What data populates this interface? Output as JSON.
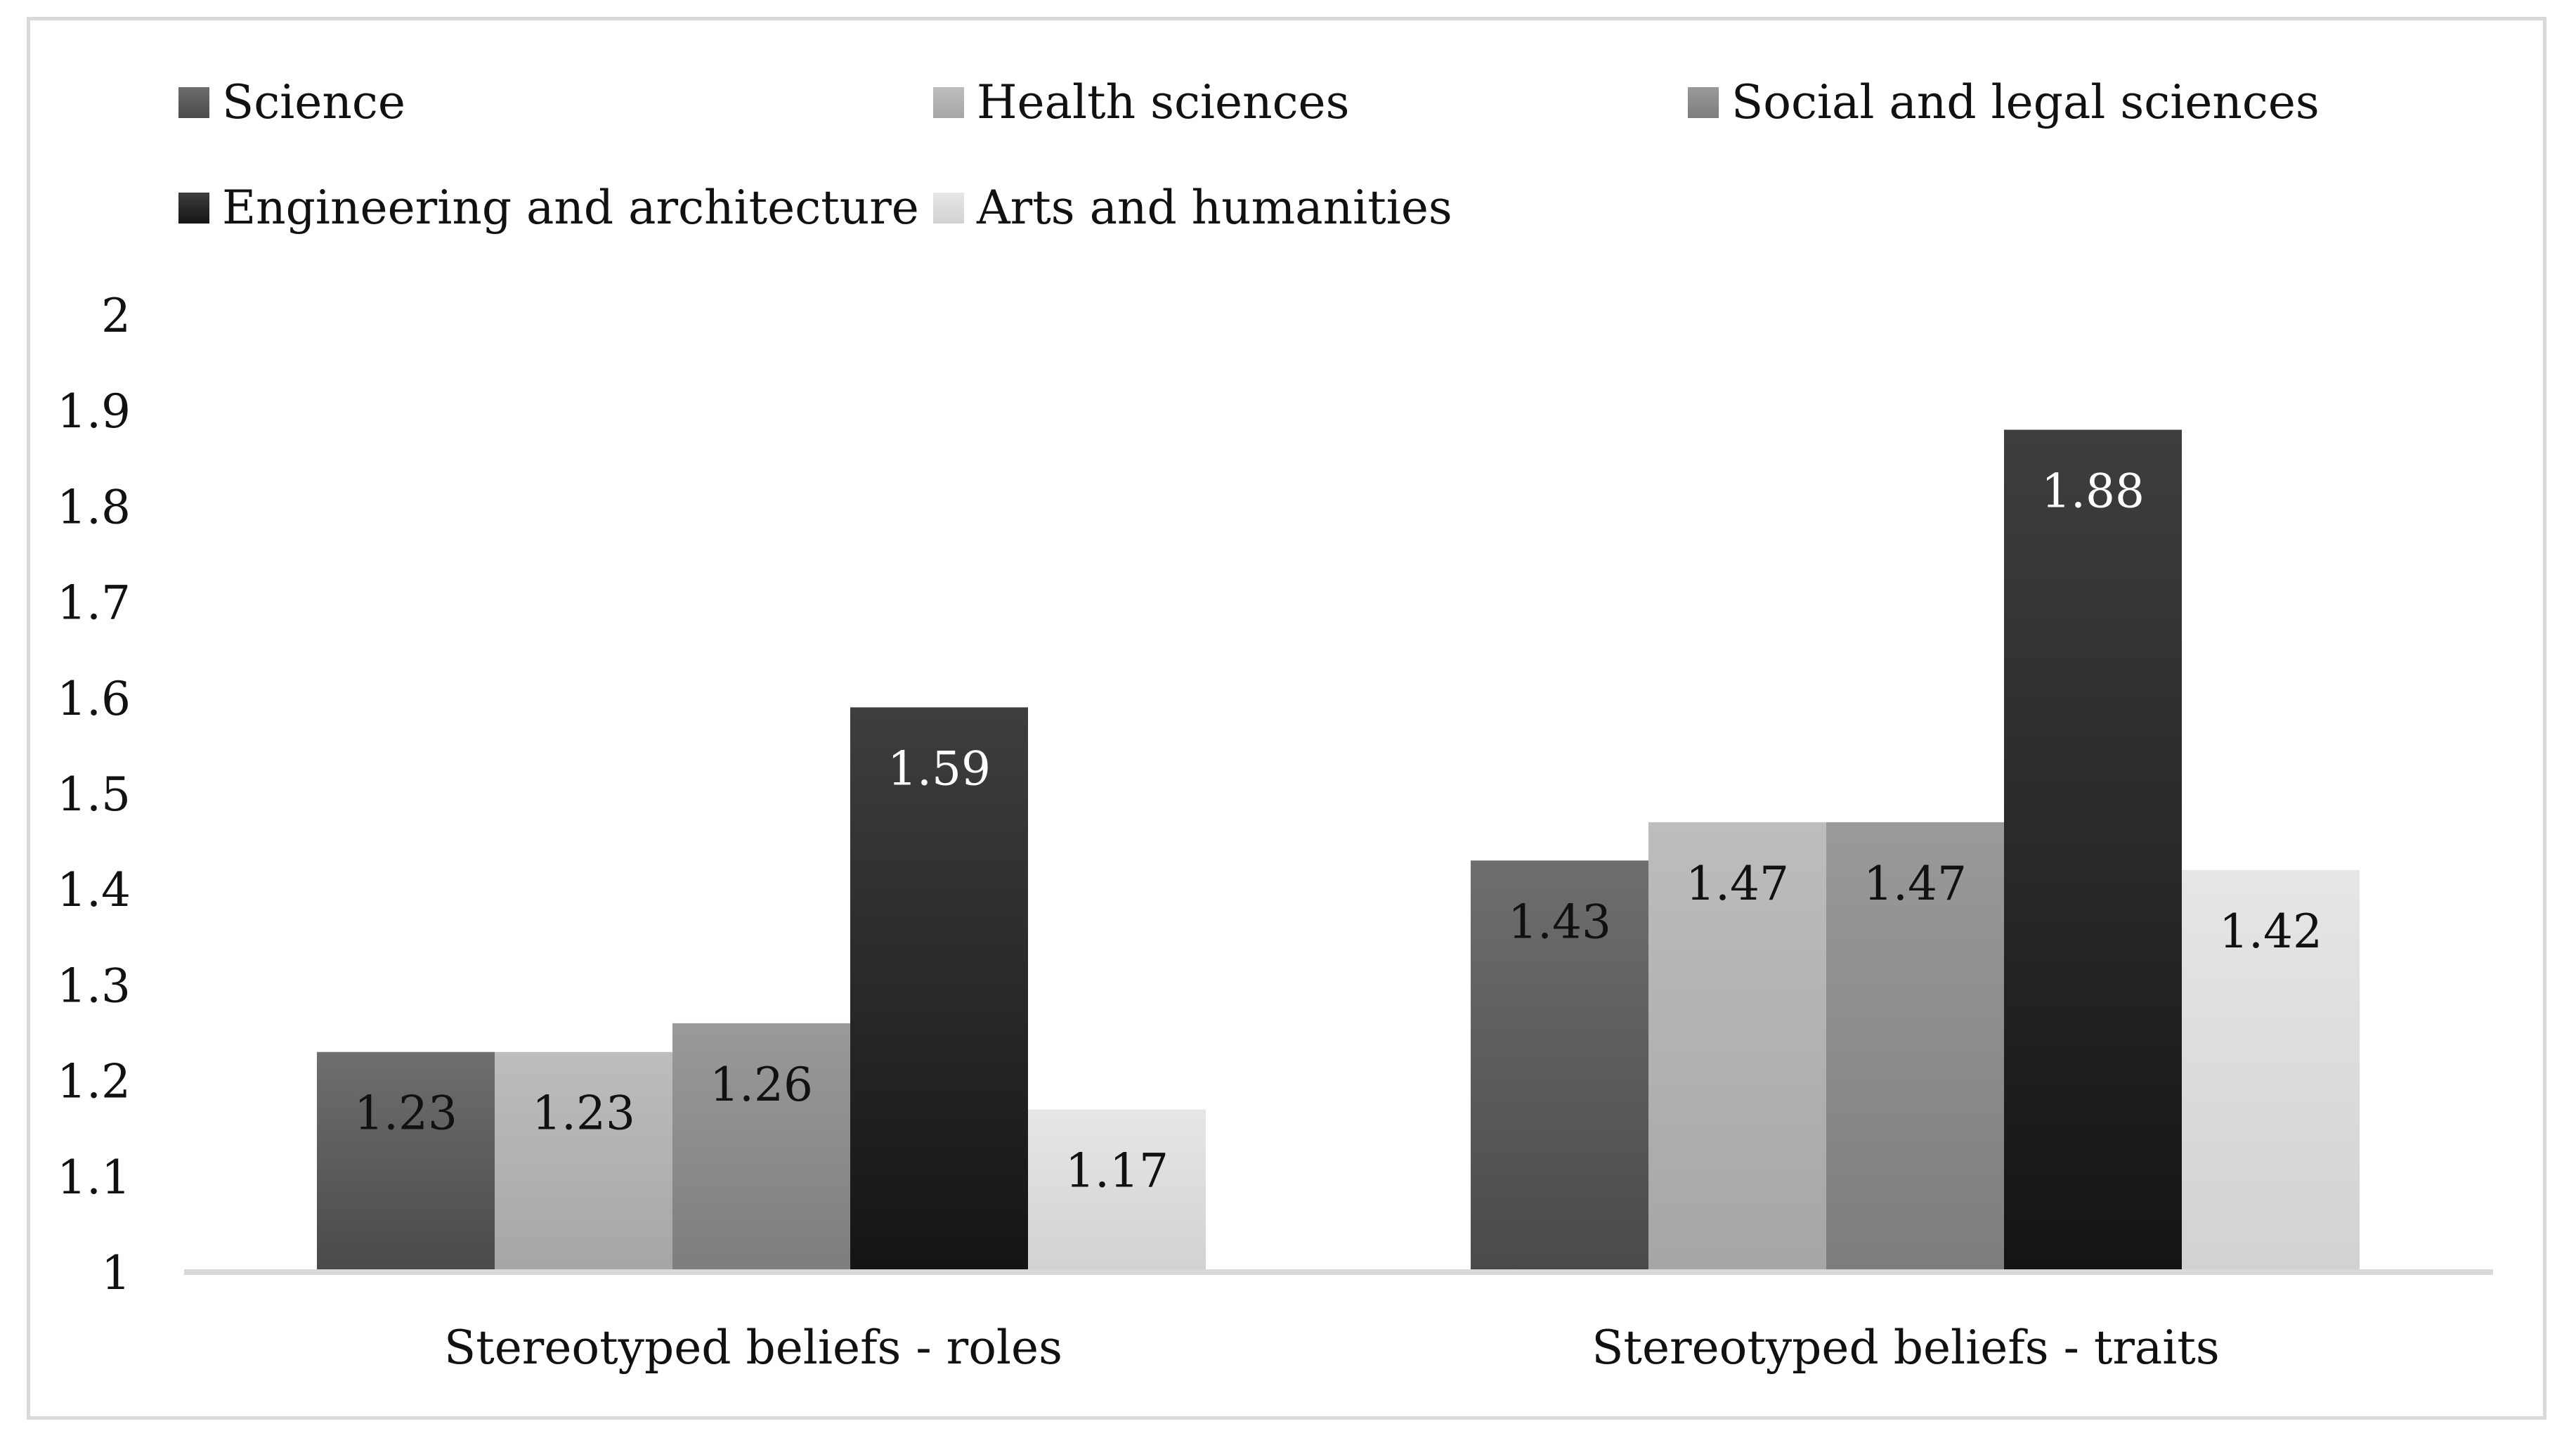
{
  "chart_data": {
    "type": "bar",
    "title": "",
    "xlabel": "",
    "ylabel": "",
    "ylim": [
      1,
      2
    ],
    "yticks": [
      "1",
      "1.1",
      "1.2",
      "1.3",
      "1.4",
      "1.5",
      "1.6",
      "1.7",
      "1.8",
      "1.9",
      "2"
    ],
    "grid": false,
    "legend_position": "top",
    "categories": [
      "Stereotyped beliefs - roles",
      "Stereotyped beliefs - traits"
    ],
    "series": [
      {
        "name": "Science",
        "values": [
          1.23,
          1.43
        ],
        "labels": [
          "1.23",
          "1.43"
        ],
        "color_top": "#6e6e6e",
        "color_bottom": "#4a4a4a",
        "label_color": "#111111"
      },
      {
        "name": "Health sciences",
        "values": [
          1.23,
          1.47
        ],
        "labels": [
          "1.23",
          "1.47"
        ],
        "color_top": "#bdbdbd",
        "color_bottom": "#a6a6a6",
        "label_color": "#111111"
      },
      {
        "name": "Social and legal sciences",
        "values": [
          1.26,
          1.47
        ],
        "labels": [
          "1.26",
          "1.47"
        ],
        "color_top": "#9a9a9a",
        "color_bottom": "#7d7d7d",
        "label_color": "#111111"
      },
      {
        "name": "Engineering and architecture",
        "values": [
          1.59,
          1.88
        ],
        "labels": [
          "1.59",
          "1.88"
        ],
        "color_top": "#3e3e3e",
        "color_bottom": "#141414",
        "label_color": "#ffffff"
      },
      {
        "name": "Arts and humanities",
        "values": [
          1.17,
          1.42
        ],
        "labels": [
          "1.17",
          "1.42"
        ],
        "color_top": "#e6e6e6",
        "color_bottom": "#d2d2d2",
        "label_color": "#111111"
      }
    ]
  }
}
